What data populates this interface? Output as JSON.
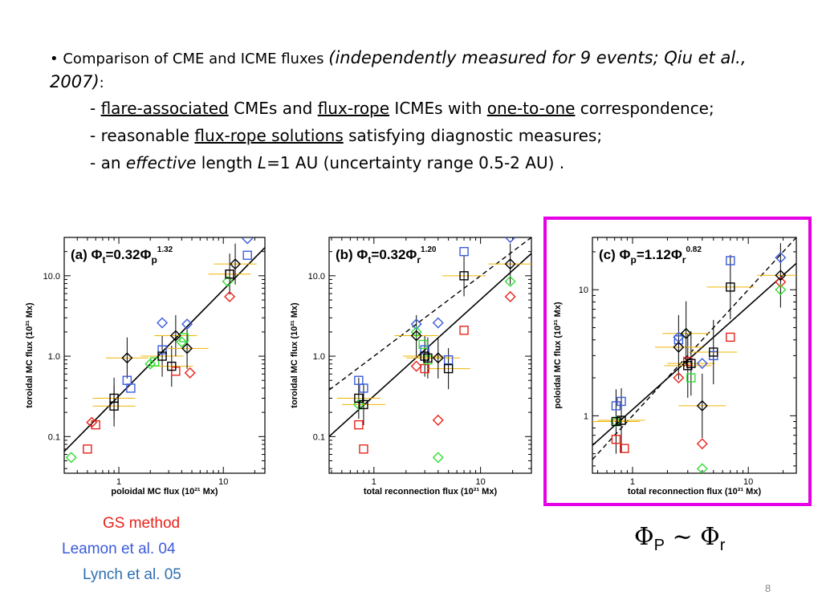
{
  "bullet": {
    "marker": "•",
    "lead": "Comparison of CME and ICME fluxes",
    "paren": "(independently measured for 9 events; Qiu et al., 2007)",
    "colon": ":"
  },
  "sub1": {
    "a": "- ",
    "u1": "flare-associated",
    "b": " CMEs and ",
    "u2": "flux-rope",
    "c": " ICMEs with ",
    "u3": "one-to-one",
    "d": " correspondence;"
  },
  "sub2": {
    "a": "- reasonable ",
    "u1": "flux-rope solutions",
    "b": " satisfying diagnostic measures;"
  },
  "sub3": {
    "a": "- an ",
    "i1": "effective",
    "b": " length ",
    "i2": "L",
    "c": "=1 AU (uncertainty range 0.5-2 AU) ."
  },
  "legend": [
    {
      "label": "GS method",
      "color": "#e8231a"
    },
    {
      "label": "Leamon et al. 04",
      "color": "#3b5bdb"
    },
    {
      "label": "Lynch et al. 05",
      "color": "#2e6fb0"
    }
  ],
  "relation": {
    "phi1": "Φ",
    "sub1": "P",
    "tilde": " ~ ",
    "phi2": "Φ",
    "sub2": "r"
  },
  "page_number": "8",
  "colors": {
    "gs": "#e8231a",
    "leamon": "#3b5bdb",
    "lynch": "#2e6fb0",
    "green": "#33dd33",
    "black": "#000000",
    "errbar": "#f0b400",
    "highlight": "#e600e6"
  },
  "chart_data": [
    {
      "type": "scatter",
      "id": "a",
      "title_prefix": "(a) Φ",
      "title_sub": "t",
      "title_mid": "=0.32Φ",
      "title_sub2": "p",
      "title_exp": "1.32",
      "xlabel": "poloidal MC flux (10²¹ Mx)",
      "ylabel": "toroidal MC flux (10²¹ Mx)",
      "xscale": "log",
      "yscale": "log",
      "xlim": [
        0.3,
        25
      ],
      "ylim": [
        0.035,
        30
      ],
      "xticks": [
        {
          "v": 1,
          "l": "1"
        },
        {
          "v": 10,
          "l": "10"
        }
      ],
      "yticks": [
        {
          "v": 0.1,
          "l": "0.1"
        },
        {
          "v": 1,
          "l": "1.0"
        },
        {
          "v": 10,
          "l": "10.0"
        }
      ],
      "fit": {
        "a": 0.32,
        "b": 1.32
      },
      "diag": false,
      "series": [
        {
          "name": "",
          "marker": "square",
          "color": "#e8231a",
          "points": [
            [
              0.5,
              0.07
            ],
            [
              0.6,
              0.14
            ],
            [
              3.5,
              0.65
            ],
            [
              11.5,
              10.5
            ]
          ]
        },
        {
          "name": "",
          "marker": "diamond",
          "color": "#e8231a",
          "points": [
            [
              0.55,
              0.15
            ],
            [
              4.8,
              0.62
            ],
            [
              11.5,
              5.5
            ]
          ]
        },
        {
          "name": "",
          "marker": "square",
          "color": "#3b5bdb",
          "points": [
            [
              1.2,
              0.5
            ],
            [
              1.3,
              0.4
            ],
            [
              2.6,
              1.2
            ],
            [
              17,
              18
            ]
          ]
        },
        {
          "name": "",
          "marker": "diamond",
          "color": "#3b5bdb",
          "points": [
            [
              2.6,
              2.6
            ],
            [
              4.5,
              2.5
            ],
            [
              17,
              29
            ]
          ]
        },
        {
          "name": "",
          "marker": "diamond",
          "color": "#33dd33",
          "points": [
            [
              0.35,
              0.055
            ],
            [
              2,
              0.8
            ],
            [
              4,
              1.5
            ],
            [
              11,
              8.5
            ]
          ]
        },
        {
          "name": "",
          "marker": "square",
          "color": "#33dd33",
          "points": [
            [
              2.2,
              0.85
            ],
            [
              4.2,
              1.7
            ]
          ]
        },
        {
          "name": "",
          "marker": "square",
          "color": "#000000",
          "points": [
            [
              0.9,
              0.3
            ],
            [
              0.9,
              0.24
            ],
            [
              2.6,
              1.0
            ],
            [
              3.2,
              0.75
            ],
            [
              11.5,
              10.5
            ]
          ]
        },
        {
          "name": "",
          "marker": "diamond",
          "color": "#000000",
          "points": [
            [
              1.2,
              0.95
            ],
            [
              3.5,
              1.8
            ],
            [
              4.5,
              1.25
            ],
            [
              13,
              14
            ]
          ]
        }
      ]
    },
    {
      "type": "scatter",
      "id": "b",
      "title_prefix": "(b) Φ",
      "title_sub": "t",
      "title_mid": "=0.32Φ",
      "title_sub2": "r",
      "title_exp": "1.20",
      "xlabel": "total reconnection flux (10²¹ Mx)",
      "ylabel": "toroidal MC flux (10²¹ Mx)",
      "xscale": "log",
      "yscale": "log",
      "xlim": [
        0.38,
        30
      ],
      "ylim": [
        0.035,
        30
      ],
      "xticks": [
        {
          "v": 1,
          "l": "1"
        },
        {
          "v": 10,
          "l": "10"
        }
      ],
      "yticks": [
        {
          "v": 0.1,
          "l": "0.1"
        },
        {
          "v": 1,
          "l": "1.0"
        },
        {
          "v": 10,
          "l": "10.0"
        }
      ],
      "fit": {
        "a": 0.32,
        "b": 1.2
      },
      "diag": true,
      "series": [
        {
          "name": "",
          "marker": "square",
          "color": "#e8231a",
          "points": [
            [
              0.72,
              0.14
            ],
            [
              0.8,
              0.07
            ],
            [
              3,
              0.7
            ],
            [
              7,
              2.1
            ]
          ]
        },
        {
          "name": "",
          "marker": "diamond",
          "color": "#e8231a",
          "points": [
            [
              2.5,
              0.75
            ],
            [
              4,
              0.16
            ],
            [
              19,
              5.5
            ]
          ]
        },
        {
          "name": "",
          "marker": "square",
          "color": "#3b5bdb",
          "points": [
            [
              0.72,
              0.5
            ],
            [
              0.8,
              0.4
            ],
            [
              3,
              1.2
            ],
            [
              5,
              0.9
            ],
            [
              7,
              20
            ]
          ]
        },
        {
          "name": "",
          "marker": "diamond",
          "color": "#3b5bdb",
          "points": [
            [
              2.5,
              2.5
            ],
            [
              4,
              2.6
            ],
            [
              19,
              30
            ]
          ]
        },
        {
          "name": "",
          "marker": "diamond",
          "color": "#33dd33",
          "points": [
            [
              0.72,
              0.25
            ],
            [
              2.5,
              2
            ],
            [
              4,
              0.055
            ],
            [
              19,
              8.5
            ]
          ]
        },
        {
          "name": "",
          "marker": "square",
          "color": "#33dd33",
          "points": [
            [
              2.9,
              1.4
            ],
            [
              3.2,
              0.9
            ]
          ]
        },
        {
          "name": "",
          "marker": "square",
          "color": "#000000",
          "points": [
            [
              0.72,
              0.3
            ],
            [
              0.8,
              0.25
            ],
            [
              3,
              1.0
            ],
            [
              3.2,
              0.95
            ],
            [
              5,
              0.7
            ],
            [
              7,
              10
            ]
          ]
        },
        {
          "name": "",
          "marker": "diamond",
          "color": "#000000",
          "points": [
            [
              2.5,
              1.8
            ],
            [
              4,
              0.95
            ],
            [
              19,
              14
            ]
          ]
        }
      ]
    },
    {
      "type": "scatter",
      "id": "c",
      "title_prefix": "(c) Φ",
      "title_sub": "p",
      "title_mid": "=1.12Φ",
      "title_sub2": "r",
      "title_exp": "0.82",
      "xlabel": "total reconnection flux (10²¹ Mx)",
      "ylabel": "poloidal MC flux (10²¹ Mx)",
      "xscale": "log",
      "yscale": "log",
      "xlim": [
        0.45,
        26
      ],
      "ylim": [
        0.35,
        26
      ],
      "xticks": [
        {
          "v": 1,
          "l": "1"
        },
        {
          "v": 10,
          "l": "10"
        }
      ],
      "yticks": [
        {
          "v": 1,
          "l": "1"
        },
        {
          "v": 10,
          "l": "10"
        }
      ],
      "fit": {
        "a": 1.12,
        "b": 0.82
      },
      "diag": true,
      "series": [
        {
          "name": "",
          "marker": "square",
          "color": "#e8231a",
          "points": [
            [
              0.72,
              0.65
            ],
            [
              0.85,
              0.55
            ],
            [
              3,
              2.7
            ],
            [
              7,
              4.2
            ]
          ]
        },
        {
          "name": "",
          "marker": "diamond",
          "color": "#e8231a",
          "points": [
            [
              2.5,
              2
            ],
            [
              4,
              0.6
            ],
            [
              19,
              11.5
            ]
          ]
        },
        {
          "name": "",
          "marker": "square",
          "color": "#3b5bdb",
          "points": [
            [
              0.72,
              1.2
            ],
            [
              0.8,
              1.3
            ],
            [
              2.5,
              4
            ],
            [
              5,
              3
            ],
            [
              7,
              17
            ]
          ]
        },
        {
          "name": "",
          "marker": "diamond",
          "color": "#3b5bdb",
          "points": [
            [
              2.5,
              4.2
            ],
            [
              4,
              2.6
            ],
            [
              19,
              18
            ]
          ]
        },
        {
          "name": "",
          "marker": "diamond",
          "color": "#33dd33",
          "points": [
            [
              0.72,
              0.9
            ],
            [
              2.9,
              4.5
            ],
            [
              4,
              0.38
            ],
            [
              19,
              10
            ]
          ]
        },
        {
          "name": "",
          "marker": "square",
          "color": "#33dd33",
          "points": [
            [
              3.2,
              2
            ]
          ]
        },
        {
          "name": "",
          "marker": "square",
          "color": "#000000",
          "points": [
            [
              0.72,
              0.9
            ],
            [
              0.8,
              0.92
            ],
            [
              3,
              2.5
            ],
            [
              3.2,
              2.6
            ],
            [
              5,
              3.2
            ],
            [
              7,
              10.5
            ]
          ]
        },
        {
          "name": "",
          "marker": "diamond",
          "color": "#000000",
          "points": [
            [
              2.5,
              3.5
            ],
            [
              2.9,
              4.5
            ],
            [
              4,
              1.2
            ],
            [
              19,
              13
            ]
          ]
        }
      ]
    }
  ]
}
